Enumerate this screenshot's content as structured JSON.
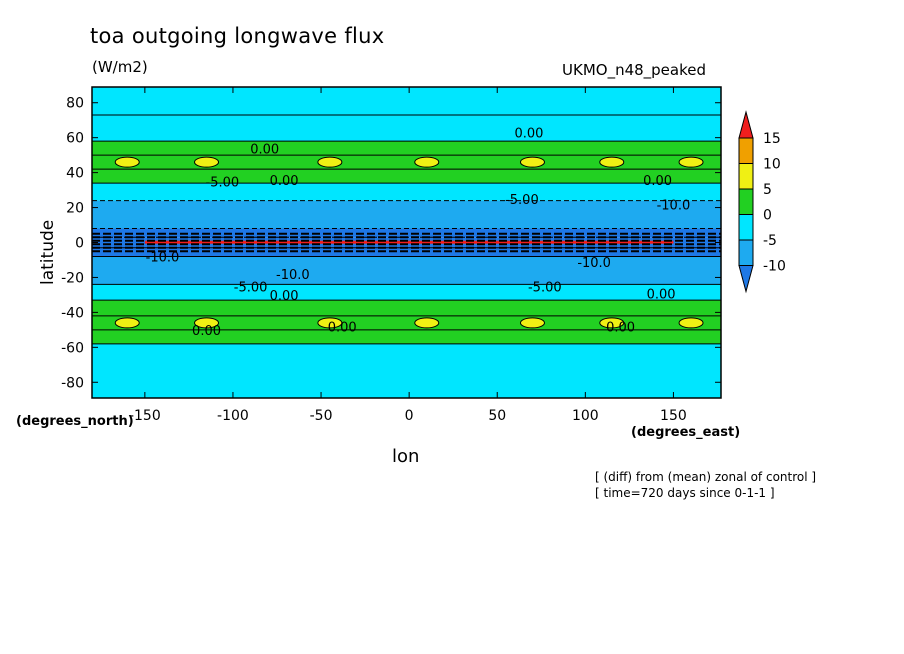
{
  "title": "toa outgoing longwave flux",
  "units": "(W/m2)",
  "model_label": "UKMO_n48_peaked",
  "footnotes": [
    "[ (diff) from (mean) zonal of control ]",
    "[ time=720 days since 0-1-1 ]"
  ],
  "colors": {
    "c_lt_m10": "#1e78e6",
    "c_m10_m5": "#1eaaf0",
    "c_m5_0": "#00e6ff",
    "c_0_5": "#22d022",
    "c_5_10": "#f0f014",
    "c_10_15": "#f0a000",
    "c_gt_15": "#f01e1e"
  },
  "chart_data": {
    "type": "contour",
    "title": "toa outgoing longwave flux",
    "subtitle": "(W/m2)",
    "xlabel": "lon",
    "ylabel": "latitude",
    "x_units": "(degrees_east)",
    "y_units": "(degrees_north)",
    "xlim": [
      -180,
      177
    ],
    "ylim": [
      -89,
      89
    ],
    "xticks": [
      -150,
      -100,
      -50,
      0,
      50,
      100,
      150
    ],
    "yticks": [
      80,
      60,
      40,
      20,
      0,
      -20,
      -40,
      -60,
      -80
    ],
    "colorbar": {
      "levels": [
        -10,
        -5,
        0,
        5,
        10,
        15
      ],
      "tick_labels": [
        "15",
        "10",
        "5",
        "0",
        "-5",
        "-10"
      ],
      "extend": "both"
    },
    "zonal_bands": [
      {
        "lat": [
          73,
          89
        ],
        "range": "-5 to 0"
      },
      {
        "lat": [
          58,
          73
        ],
        "range": "-5 to 0"
      },
      {
        "lat": [
          50,
          58
        ],
        "range": "0 to 5"
      },
      {
        "lat": [
          42,
          50
        ],
        "range": "0 to 5, patches 5 to 10"
      },
      {
        "lat": [
          34,
          42
        ],
        "range": "0 to 5"
      },
      {
        "lat": [
          24,
          34
        ],
        "range": "-5 to 0"
      },
      {
        "lat": [
          8,
          24
        ],
        "range": "-10 to -5"
      },
      {
        "lat": [
          3,
          8
        ],
        "range": "< -10"
      },
      {
        "lat": [
          -3,
          3
        ],
        "range": "< -10, red line 10 to 15"
      },
      {
        "lat": [
          -8,
          -3
        ],
        "range": "< -10"
      },
      {
        "lat": [
          -24,
          -8
        ],
        "range": "-10 to -5"
      },
      {
        "lat": [
          -33,
          -24
        ],
        "range": "-5 to 0"
      },
      {
        "lat": [
          -42,
          -33
        ],
        "range": "0 to 5"
      },
      {
        "lat": [
          -50,
          -42
        ],
        "range": "0 to 5, patches 5 to 10"
      },
      {
        "lat": [
          -58,
          -50
        ],
        "range": "0 to 5"
      },
      {
        "lat": [
          -89,
          -58
        ],
        "range": "-5 to 0"
      }
    ],
    "contour_labels": [
      {
        "text": "0.00",
        "lon": -82,
        "lat": 51
      },
      {
        "text": "-5.00",
        "lon": -106,
        "lat": 32
      },
      {
        "text": "0.00",
        "lon": -71,
        "lat": 33
      },
      {
        "text": "0.00",
        "lon": 68,
        "lat": 60
      },
      {
        "text": "-5.00",
        "lon": 64,
        "lat": 22
      },
      {
        "text": "0.00",
        "lon": 141,
        "lat": 33
      },
      {
        "text": "-10.0",
        "lon": 150,
        "lat": 19
      },
      {
        "text": "-10.0",
        "lon": -140,
        "lat": -11
      },
      {
        "text": "-10.0",
        "lon": -66,
        "lat": -21
      },
      {
        "text": "-10.0",
        "lon": 105,
        "lat": -14
      },
      {
        "text": "-5.00",
        "lon": -90,
        "lat": -28
      },
      {
        "text": "0.00",
        "lon": -71,
        "lat": -33
      },
      {
        "text": "-5.00",
        "lon": 77,
        "lat": -28
      },
      {
        "text": "0.00",
        "lon": 143,
        "lat": -32
      },
      {
        "text": "0.00",
        "lon": -115,
        "lat": -53
      },
      {
        "text": "0.00",
        "lon": -38,
        "lat": -51
      },
      {
        "text": "0.00",
        "lon": 120,
        "lat": -51
      }
    ]
  }
}
